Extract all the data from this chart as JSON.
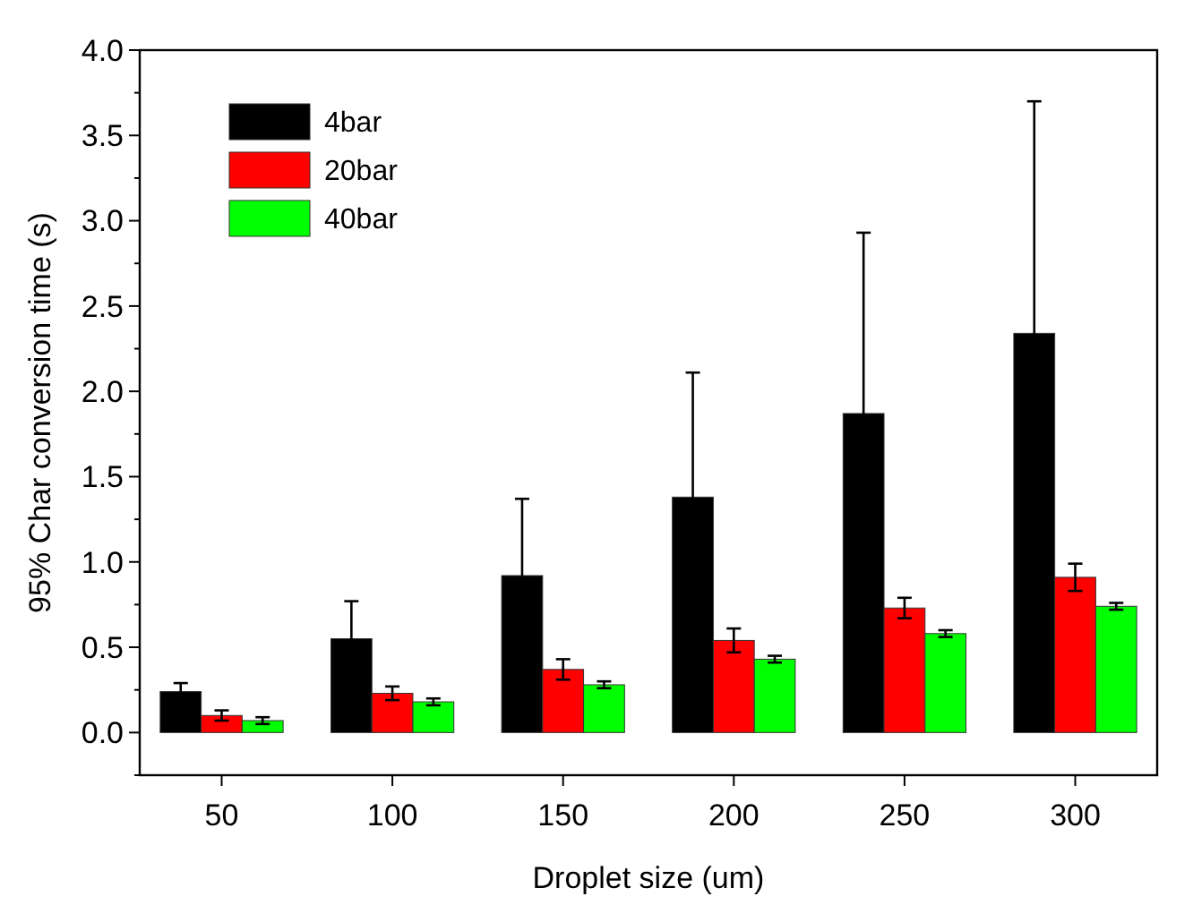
{
  "chart_data": {
    "type": "bar",
    "xlabel": "Droplet size (um)",
    "ylabel": "95% Char conversion time (s)",
    "categories": [
      "50",
      "100",
      "150",
      "200",
      "250",
      "300"
    ],
    "series": [
      {
        "name": "4bar",
        "color": "#000000",
        "values": [
          0.24,
          0.55,
          0.92,
          1.38,
          1.87,
          2.34
        ],
        "errors": [
          0.05,
          0.22,
          0.45,
          0.73,
          1.06,
          1.36
        ]
      },
      {
        "name": "20bar",
        "color": "#ff0000",
        "values": [
          0.1,
          0.23,
          0.37,
          0.54,
          0.73,
          0.91
        ],
        "errors": [
          0.03,
          0.04,
          0.06,
          0.07,
          0.06,
          0.08
        ]
      },
      {
        "name": "40bar",
        "color": "#00ff00",
        "values": [
          0.07,
          0.18,
          0.28,
          0.43,
          0.58,
          0.74
        ],
        "errors": [
          0.02,
          0.02,
          0.02,
          0.02,
          0.02,
          0.02
        ]
      }
    ],
    "ylim": [
      -0.25,
      4.0
    ],
    "yticks": [
      {
        "value": -0.25,
        "label": null
      },
      {
        "value": 0,
        "label": "0.0"
      },
      {
        "value": 0.25,
        "label": null
      },
      {
        "value": 0.5,
        "label": "0.5"
      },
      {
        "value": 0.75,
        "label": null
      },
      {
        "value": 1,
        "label": "1.0"
      },
      {
        "value": 1.25,
        "label": null
      },
      {
        "value": 1.5,
        "label": "1.5"
      },
      {
        "value": 1.75,
        "label": null
      },
      {
        "value": 2,
        "label": "2.0"
      },
      {
        "value": 2.25,
        "label": null
      },
      {
        "value": 2.5,
        "label": "2.5"
      },
      {
        "value": 2.75,
        "label": null
      },
      {
        "value": 3,
        "label": "3.0"
      },
      {
        "value": 3.25,
        "label": null
      },
      {
        "value": 3.5,
        "label": "3.5"
      },
      {
        "value": 3.75,
        "label": null
      },
      {
        "value": 4,
        "label": "4.0"
      }
    ],
    "legend": "top left",
    "grid": false
  }
}
